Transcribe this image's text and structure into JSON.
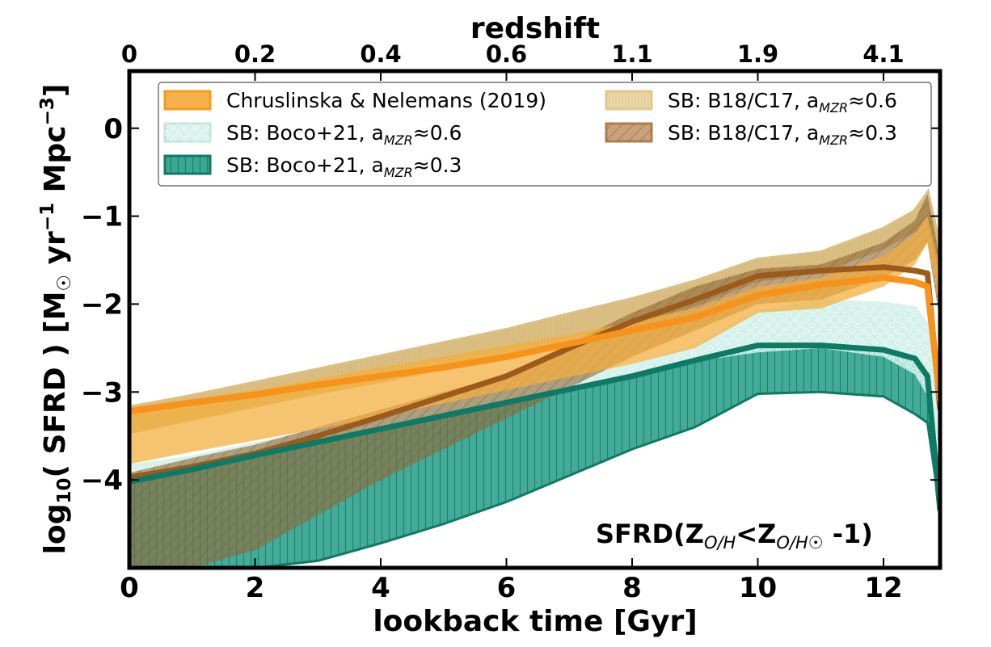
{
  "chart_data": {
    "type": "area",
    "title": "",
    "xlabel": "lookback time [Gyr]",
    "ylabel": "log10( SFRD ) [M☉ yr−1 Mpc−3]",
    "top_xlabel": "redshift",
    "xlim": [
      0,
      12.9
    ],
    "ylim": [
      -5.0,
      0.65
    ],
    "x_ticks": [
      0,
      2,
      4,
      6,
      8,
      10,
      12
    ],
    "x_tick_labels": [
      "0",
      "2",
      "4",
      "6",
      "8",
      "10",
      "12"
    ],
    "y_ticks": [
      0,
      -1,
      -2,
      -3,
      -4
    ],
    "y_tick_labels": [
      "0",
      "−1",
      "−2",
      "−3",
      "−4"
    ],
    "top_ticks_x": [
      0,
      2.0,
      4.0,
      6.0,
      8.0,
      10.0,
      12.0
    ],
    "top_tick_labels": [
      "0",
      "0.2",
      "0.4",
      "0.6",
      "1.1",
      "1.9",
      "4.1"
    ],
    "legend_location": "top",
    "annotation": "SFRD(Z_O/H < Z_O/H☉ -1)",
    "series": [
      {
        "name": "SB: B18/C17, a_MZR ≈ 0.6",
        "color": "#ddc285",
        "x": [
          0,
          1,
          2,
          3,
          4,
          5,
          6,
          7,
          8,
          9,
          10,
          11,
          12,
          12.5,
          12.7,
          12.9
        ],
        "upper": [
          -3.18,
          -3.05,
          -2.9,
          -2.75,
          -2.6,
          -2.45,
          -2.3,
          -2.12,
          -1.95,
          -1.75,
          -1.5,
          -1.42,
          -1.15,
          -0.95,
          -0.75,
          -1.4
        ],
        "lower": [
          -3.45,
          -3.3,
          -3.15,
          -3.0,
          -2.87,
          -2.72,
          -2.55,
          -2.38,
          -2.2,
          -2.0,
          -1.72,
          -1.62,
          -1.35,
          -1.15,
          -0.95,
          -1.6
        ]
      },
      {
        "name": "SB: B18/C17, a_MZR ≈ 0.3",
        "color": "#b5875a",
        "x": [
          0,
          1,
          2,
          3,
          4,
          5,
          6,
          7,
          8,
          9,
          10,
          11,
          12,
          12.5,
          12.7,
          12.9
        ],
        "upper": [
          -3.92,
          -3.75,
          -3.6,
          -3.4,
          -3.2,
          -3.0,
          -2.8,
          -2.45,
          -2.1,
          -1.8,
          -1.6,
          -1.55,
          -1.3,
          -1.05,
          -0.75,
          -1.5
        ],
        "lower": [
          -5.0,
          -5.0,
          -4.8,
          -4.4,
          -4.0,
          -3.65,
          -3.3,
          -2.95,
          -2.6,
          -2.3,
          -2.0,
          -1.95,
          -1.7,
          -1.5,
          -1.3,
          -2.2
        ],
        "line": [
          -3.97,
          -3.85,
          -3.7,
          -3.5,
          -3.28,
          -3.05,
          -2.82,
          -2.5,
          -2.2,
          -1.95,
          -1.68,
          -1.62,
          -1.58,
          -1.62,
          -1.65,
          -3.2
        ]
      },
      {
        "name": "SB: Boco+21, a_MZR ≈ 0.6",
        "color": "#cfeee6",
        "x": [
          0,
          1,
          2,
          3,
          4,
          5,
          6,
          7,
          8,
          9,
          10,
          11,
          12,
          12.5,
          12.7,
          12.9
        ],
        "upper": [
          -3.85,
          -3.75,
          -3.6,
          -3.45,
          -3.3,
          -3.15,
          -3.0,
          -2.85,
          -2.7,
          -2.5,
          -2.1,
          -1.97,
          -2.0,
          -2.05,
          -2.25,
          -3.1
        ],
        "lower": [
          -3.92,
          -3.82,
          -3.68,
          -3.55,
          -3.4,
          -3.25,
          -3.1,
          -2.95,
          -2.8,
          -2.65,
          -2.55,
          -2.5,
          -2.6,
          -2.8,
          -3.05,
          -3.7
        ]
      },
      {
        "name": "SB: Boco+21, a_MZR ≈ 0.3",
        "color": "#2a9d8a",
        "x": [
          0,
          1,
          2,
          3,
          4,
          5,
          6,
          7,
          8,
          9,
          10,
          11,
          12,
          12.5,
          12.7,
          12.9
        ],
        "upper": [
          -4.0,
          -3.85,
          -3.7,
          -3.55,
          -3.4,
          -3.25,
          -3.1,
          -2.95,
          -2.8,
          -2.62,
          -2.45,
          -2.45,
          -2.5,
          -2.6,
          -2.8,
          -4.35
        ],
        "lower": [
          -5.0,
          -5.0,
          -5.0,
          -4.92,
          -4.72,
          -4.5,
          -4.25,
          -3.95,
          -3.65,
          -3.4,
          -3.02,
          -3.0,
          -3.05,
          -3.25,
          -3.35,
          -4.35
        ],
        "line_upper": [
          -4.02,
          -3.88,
          -3.72,
          -3.57,
          -3.42,
          -3.27,
          -3.12,
          -2.97,
          -2.82,
          -2.64,
          -2.47,
          -2.47,
          -2.52,
          -2.62,
          -2.82,
          -4.35
        ],
        "line_lower": [
          -5.0,
          -5.0,
          -5.0,
          -4.92,
          -4.72,
          -4.5,
          -4.25,
          -3.95,
          -3.65,
          -3.4,
          -3.02,
          -3.0,
          -3.05,
          -3.25,
          -3.35,
          -4.35
        ]
      },
      {
        "name": "Chruslinska & Nelemans (2019)",
        "color": "#f2ad3a",
        "x": [
          0,
          1,
          2,
          3,
          4,
          5,
          6,
          7,
          8,
          9,
          10,
          11,
          12,
          12.5,
          12.7,
          12.9
        ],
        "upper": [
          -3.18,
          -3.08,
          -2.98,
          -2.85,
          -2.72,
          -2.6,
          -2.47,
          -2.35,
          -2.2,
          -2.05,
          -1.8,
          -1.7,
          -1.45,
          -1.2,
          -1.0,
          -1.6
        ],
        "lower": [
          -3.82,
          -3.68,
          -3.55,
          -3.42,
          -3.28,
          -3.13,
          -2.98,
          -2.83,
          -2.68,
          -2.5,
          -2.1,
          -2.05,
          -1.8,
          -1.55,
          -1.3,
          -2.0
        ],
        "line": [
          -3.22,
          -3.12,
          -3.03,
          -2.92,
          -2.82,
          -2.72,
          -2.6,
          -2.45,
          -2.3,
          -2.15,
          -1.9,
          -1.78,
          -1.7,
          -1.75,
          -1.8,
          -3.1
        ]
      }
    ],
    "legend": [
      {
        "label": "Chruslinska & Nelemans (2019)",
        "color": "#f6b24a",
        "edge": "#f59a1a",
        "hatch": "none"
      },
      {
        "label": "SB: B18/C17, a",
        "sub": "MZR",
        "suffix": "≈0.6",
        "color": "#ecd9aa",
        "edge": "#e3c98f",
        "hatch": "vertical-fine"
      },
      {
        "label": "SB: Boco+21, a",
        "sub": "MZR",
        "suffix": "≈0.6",
        "color": "#d9f1eb",
        "edge": "#bfe6dc",
        "hatch": "dots"
      },
      {
        "label": "SB: B18/C17, a",
        "sub": "MZR",
        "suffix": "≈0.3",
        "color": "#c9a27b",
        "edge": "#b07c4c",
        "hatch": "diagonal"
      },
      {
        "label": "SB: Boco+21, a",
        "sub": "MZR",
        "suffix": "≈0.3",
        "color": "#3ba896",
        "edge": "#127a66",
        "hatch": "vertical"
      }
    ]
  }
}
